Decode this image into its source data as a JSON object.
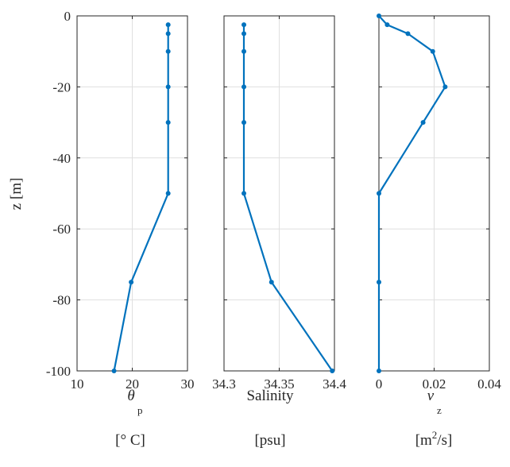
{
  "chart_data": [
    {
      "type": "line",
      "xlabel_symbol": "θ",
      "xlabel_subscript": "p",
      "units": "[° C]",
      "ylabel": "z [m]",
      "xlim": [
        10,
        30
      ],
      "ylim": [
        -100,
        0
      ],
      "xticks": [
        10,
        20,
        30
      ],
      "xtick_labels": [
        "10",
        "20",
        "30"
      ],
      "yticks": [
        0,
        -20,
        -40,
        -60,
        -80,
        -100
      ],
      "ytick_labels": [
        "0",
        "-20",
        "-40",
        "-60",
        "-80",
        "-100"
      ],
      "grid": true,
      "series": [
        {
          "x": [
            26.5,
            26.5,
            26.5,
            26.5,
            26.5,
            26.5,
            19.8,
            16.7
          ],
          "y": [
            -2.5,
            -5,
            -10,
            -20,
            -30,
            -50,
            -75,
            -100
          ]
        }
      ]
    },
    {
      "type": "line",
      "xlabel": "Salinity",
      "units": "[psu]",
      "xlim": [
        34.3,
        34.4
      ],
      "ylim": [
        -100,
        0
      ],
      "xticks": [
        34.3,
        34.35,
        34.4
      ],
      "xtick_labels": [
        "34.3",
        "34.35",
        "34.4"
      ],
      "grid": true,
      "series": [
        {
          "x": [
            34.318,
            34.318,
            34.318,
            34.318,
            34.318,
            34.318,
            34.343,
            34.398
          ],
          "y": [
            -2.5,
            -5,
            -10,
            -20,
            -30,
            -50,
            -75,
            -100
          ]
        }
      ]
    },
    {
      "type": "line",
      "xlabel_symbol": "ν",
      "xlabel_subscript": "z",
      "units_base": "[m",
      "units_sup": "2",
      "units_tail": "/s]",
      "xlim": [
        0,
        0.04
      ],
      "ylim": [
        -100,
        0
      ],
      "xticks": [
        0,
        0.02,
        0.04
      ],
      "xtick_labels": [
        "0",
        "0.02",
        "0.04"
      ],
      "grid": true,
      "series": [
        {
          "x": [
            0.0,
            0.003,
            0.0105,
            0.0195,
            0.024,
            0.016,
            0.0,
            0.0,
            0.0
          ],
          "y": [
            0,
            -2.5,
            -5,
            -10,
            -20,
            -30,
            -50,
            -75,
            -100
          ]
        }
      ]
    }
  ],
  "colors": {
    "line": "#0072BD",
    "axis": "#262626",
    "grid": "#dfdfdf"
  }
}
